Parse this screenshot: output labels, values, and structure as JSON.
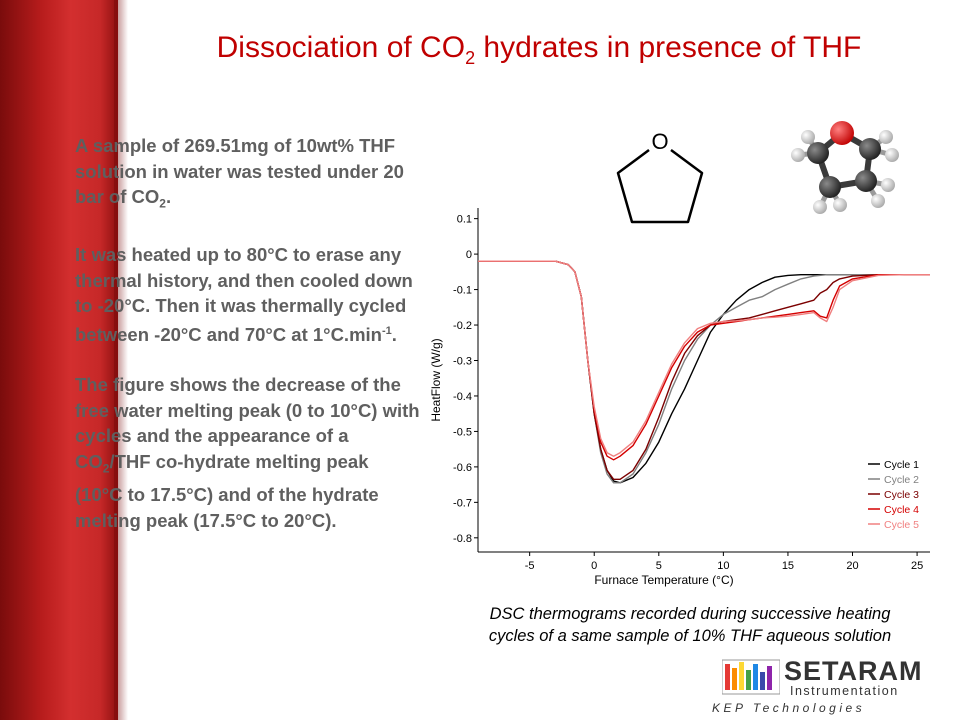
{
  "slide": {
    "title_pre": "Dissociation of CO",
    "title_sub": "2",
    "title_post": " hydrates in presence of THF",
    "p1_a": "A sample of 269.51mg of 10wt% THF solution in water was tested under 20 bar of CO",
    "p1_sub": "2",
    "p1_b": ".",
    "p2_a": "It was heated up to 80°C to erase any thermal history, and then cooled down to -20°C. Then it was thermally cycled between -20°C and 70°C at 1°C.min",
    "p2_sup": "-1",
    "p2_b": ".",
    "p3_a": "The figure shows the decrease of the free water melting peak (0 to 10°C) with cycles and the appearance of a CO",
    "p3_sub": "2",
    "p3_b": "/THF co-hydrate melting peak (10°C to 17.5°C) and of the hydrate melting peak (17.5°C to 20°C).",
    "caption_line1": "DSC thermograms recorded during successive heating",
    "caption_line2": "cycles of a same sample of 10% THF aqueous solution",
    "molecule_atom": "O",
    "logo_main": "SETARAM",
    "logo_sub": "Instrumentation",
    "logo_kep": "KEP Technologies"
  },
  "chart_data": {
    "type": "line",
    "xlabel": "Furnace Temperature (°C)",
    "ylabel": "HeatFlow (W/g)",
    "xlim": [
      -9,
      26
    ],
    "ylim": [
      -0.84,
      0.13
    ],
    "xticks": [
      -5,
      0,
      5,
      10,
      15,
      20,
      25
    ],
    "yticks": [
      0.1,
      0,
      -0.1,
      -0.2,
      -0.3,
      -0.4,
      -0.5,
      -0.6,
      -0.7,
      -0.8
    ],
    "legend_position": "bottom-right",
    "series": [
      {
        "name": "Cycle 1",
        "color": "#000000",
        "x": [
          -9,
          -3,
          -2,
          -1.5,
          -1,
          -0.5,
          0,
          0.5,
          1,
          1.5,
          2,
          3,
          4,
          5,
          6,
          7,
          8,
          9,
          10,
          11,
          12,
          13,
          14,
          15,
          16,
          17,
          18,
          19,
          20,
          22,
          24,
          26
        ],
        "y": [
          -0.02,
          -0.02,
          -0.03,
          -0.05,
          -0.12,
          -0.3,
          -0.45,
          -0.55,
          -0.61,
          -0.64,
          -0.645,
          -0.63,
          -0.59,
          -0.53,
          -0.45,
          -0.38,
          -0.3,
          -0.22,
          -0.17,
          -0.13,
          -0.1,
          -0.08,
          -0.065,
          -0.06,
          -0.058,
          -0.058,
          -0.058,
          -0.058,
          -0.058,
          -0.058,
          -0.058,
          -0.058
        ]
      },
      {
        "name": "Cycle 2",
        "color": "#808080",
        "x": [
          -9,
          -3,
          -2,
          -1.5,
          -1,
          -0.5,
          0,
          0.5,
          1,
          1.5,
          2,
          3,
          4,
          5,
          6,
          7,
          8,
          9,
          10,
          11,
          12,
          13,
          14,
          15,
          16,
          17,
          18,
          19,
          20,
          22,
          24,
          26
        ],
        "y": [
          -0.02,
          -0.02,
          -0.03,
          -0.05,
          -0.12,
          -0.3,
          -0.45,
          -0.56,
          -0.62,
          -0.645,
          -0.645,
          -0.62,
          -0.56,
          -0.48,
          -0.38,
          -0.3,
          -0.24,
          -0.2,
          -0.17,
          -0.15,
          -0.13,
          -0.12,
          -0.1,
          -0.085,
          -0.07,
          -0.062,
          -0.058,
          -0.058,
          -0.058,
          -0.058,
          -0.058,
          -0.058
        ]
      },
      {
        "name": "Cycle 3",
        "color": "#7b0000",
        "x": [
          -9,
          -3,
          -2,
          -1.5,
          -1,
          -0.5,
          0,
          0.5,
          1,
          1.5,
          2,
          3,
          4,
          5,
          6,
          7,
          8,
          9,
          10,
          11,
          12,
          13,
          14,
          15,
          16,
          17,
          17.5,
          18,
          18.5,
          19,
          20,
          22,
          24,
          26
        ],
        "y": [
          -0.02,
          -0.02,
          -0.03,
          -0.05,
          -0.12,
          -0.3,
          -0.45,
          -0.55,
          -0.61,
          -0.635,
          -0.635,
          -0.61,
          -0.55,
          -0.46,
          -0.36,
          -0.28,
          -0.23,
          -0.2,
          -0.19,
          -0.185,
          -0.18,
          -0.17,
          -0.16,
          -0.15,
          -0.14,
          -0.13,
          -0.11,
          -0.1,
          -0.08,
          -0.07,
          -0.062,
          -0.058,
          -0.058,
          -0.058
        ]
      },
      {
        "name": "Cycle 4",
        "color": "#d40000",
        "x": [
          -9,
          -3,
          -2,
          -1.5,
          -1,
          -0.5,
          0,
          0.5,
          1,
          1.5,
          2,
          3,
          4,
          5,
          6,
          7,
          8,
          9,
          10,
          11,
          12,
          13,
          14,
          15,
          16,
          17,
          17.5,
          18,
          18.5,
          19,
          20,
          22,
          24,
          26
        ],
        "y": [
          -0.02,
          -0.02,
          -0.03,
          -0.05,
          -0.12,
          -0.3,
          -0.44,
          -0.53,
          -0.57,
          -0.58,
          -0.57,
          -0.54,
          -0.48,
          -0.4,
          -0.32,
          -0.26,
          -0.22,
          -0.2,
          -0.195,
          -0.19,
          -0.185,
          -0.18,
          -0.175,
          -0.17,
          -0.165,
          -0.16,
          -0.175,
          -0.18,
          -0.13,
          -0.09,
          -0.07,
          -0.058,
          -0.058,
          -0.058
        ]
      },
      {
        "name": "Cycle 5",
        "color": "#f08080",
        "x": [
          -9,
          -3,
          -2,
          -1.5,
          -1,
          -0.5,
          0,
          0.5,
          1,
          1.5,
          2,
          3,
          4,
          5,
          6,
          7,
          8,
          9,
          10,
          11,
          12,
          13,
          14,
          15,
          16,
          17,
          17.5,
          18,
          18.5,
          19,
          20,
          22,
          24,
          26
        ],
        "y": [
          -0.02,
          -0.02,
          -0.03,
          -0.05,
          -0.12,
          -0.3,
          -0.43,
          -0.52,
          -0.56,
          -0.57,
          -0.56,
          -0.53,
          -0.47,
          -0.39,
          -0.31,
          -0.25,
          -0.21,
          -0.195,
          -0.19,
          -0.188,
          -0.185,
          -0.18,
          -0.178,
          -0.175,
          -0.17,
          -0.165,
          -0.18,
          -0.19,
          -0.15,
          -0.1,
          -0.075,
          -0.06,
          -0.058,
          -0.058
        ]
      }
    ]
  }
}
